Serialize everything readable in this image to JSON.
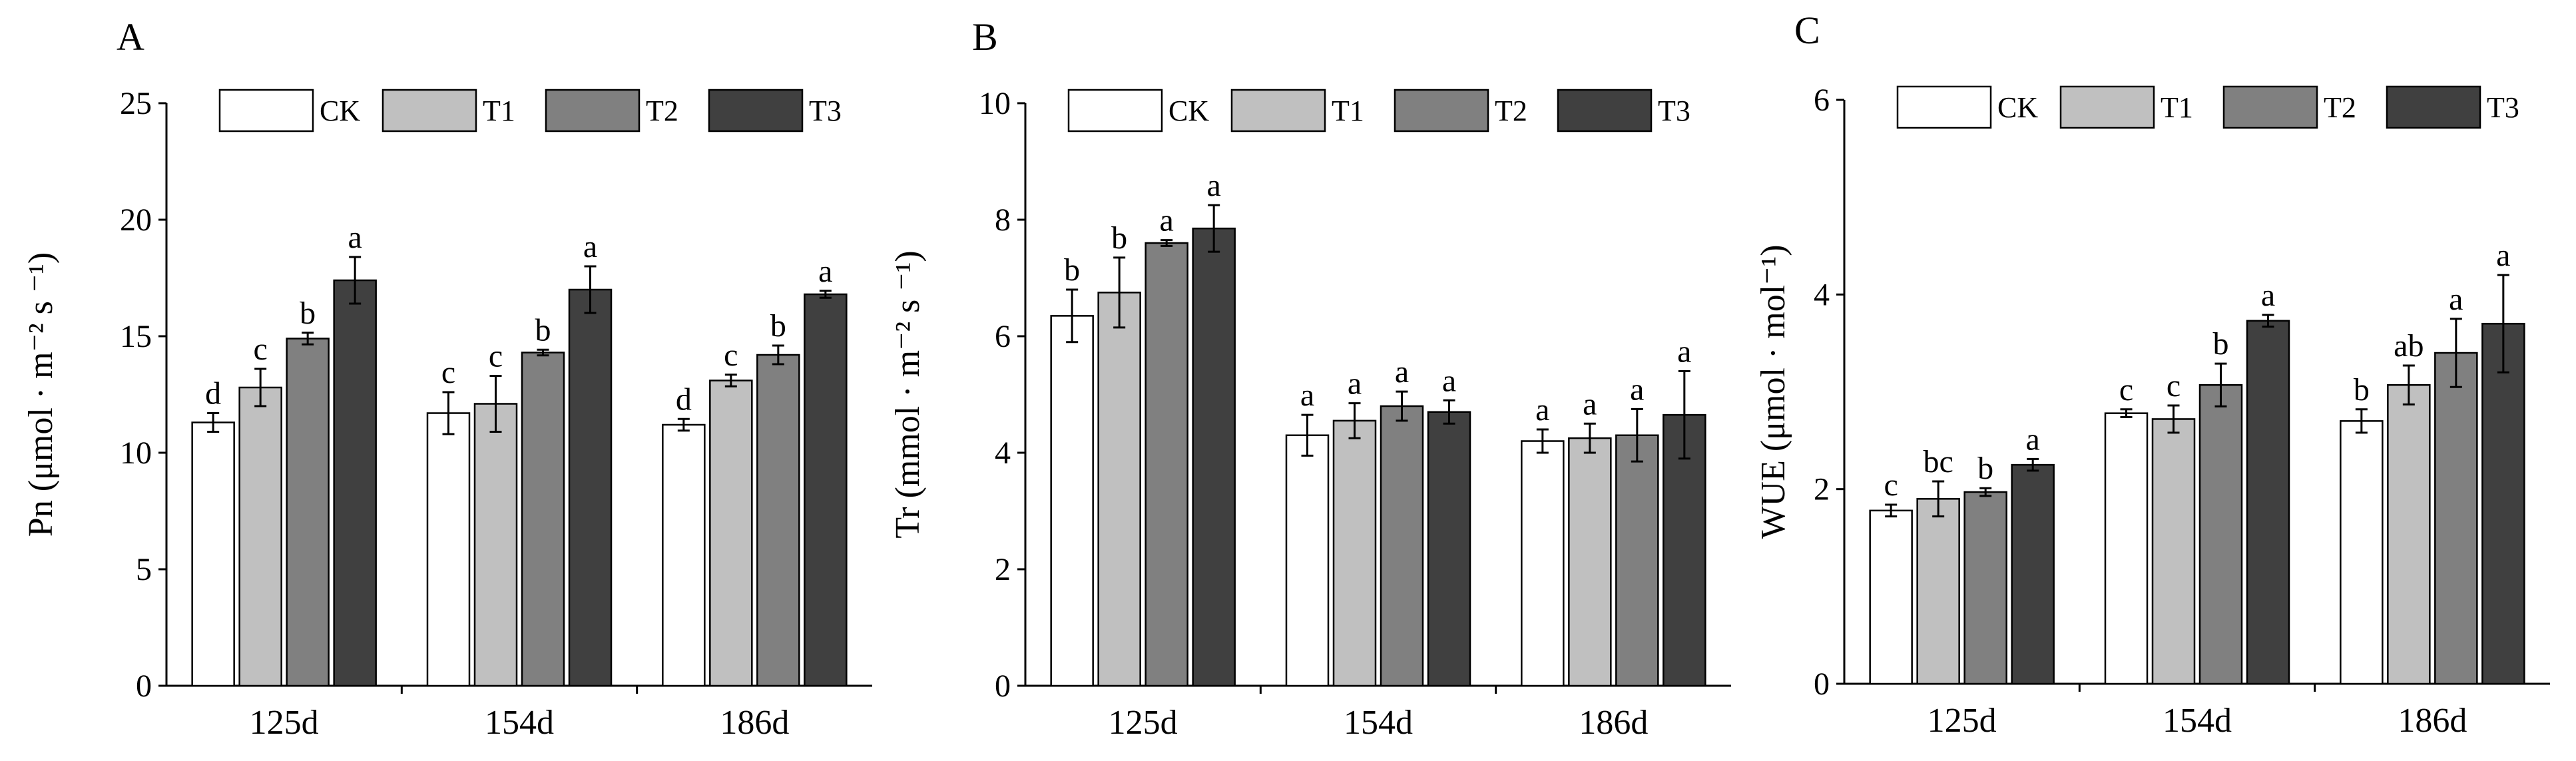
{
  "chart_data": [
    {
      "panel_label": "A",
      "type": "bar",
      "ylabel": "Pn (μmol · m⁻² s ⁻¹)",
      "ylim": [
        0,
        25
      ],
      "yticks": [
        0,
        5,
        10,
        15,
        20,
        25
      ],
      "categories": [
        "125d",
        "154d",
        "186d"
      ],
      "legend_position": "top",
      "series": [
        {
          "name": "CK",
          "color": "#ffffff",
          "values": [
            11.3,
            11.7,
            11.2
          ],
          "errors": [
            0.4,
            0.9,
            0.25
          ],
          "letters": [
            "d",
            "c",
            "d"
          ]
        },
        {
          "name": "T1",
          "color": "#c0c0c0",
          "values": [
            12.8,
            12.1,
            13.1
          ],
          "errors": [
            0.8,
            1.2,
            0.25
          ],
          "letters": [
            "c",
            "c",
            "c"
          ]
        },
        {
          "name": "T2",
          "color": "#808080",
          "values": [
            14.9,
            14.3,
            14.2
          ],
          "errors": [
            0.25,
            0.12,
            0.4
          ],
          "letters": [
            "b",
            "b",
            "b"
          ]
        },
        {
          "name": "T3",
          "color": "#404040",
          "values": [
            17.4,
            17.0,
            16.8
          ],
          "errors": [
            1.0,
            1.0,
            0.15
          ],
          "letters": [
            "a",
            "a",
            "a"
          ]
        }
      ]
    },
    {
      "panel_label": "B",
      "type": "bar",
      "ylabel": "Tr (mmol · m⁻² s ⁻¹)",
      "ylim": [
        0,
        10
      ],
      "yticks": [
        0,
        2,
        4,
        6,
        8,
        10
      ],
      "categories": [
        "125d",
        "154d",
        "186d"
      ],
      "legend_position": "top",
      "series": [
        {
          "name": "CK",
          "color": "#ffffff",
          "values": [
            6.35,
            4.3,
            4.2
          ],
          "errors": [
            0.45,
            0.35,
            0.2
          ],
          "letters": [
            "b",
            "a",
            "a"
          ]
        },
        {
          "name": "T1",
          "color": "#c0c0c0",
          "values": [
            6.75,
            4.55,
            4.25
          ],
          "errors": [
            0.6,
            0.3,
            0.25
          ],
          "letters": [
            "b",
            "a",
            "a"
          ]
        },
        {
          "name": "T2",
          "color": "#808080",
          "values": [
            7.6,
            4.8,
            4.3
          ],
          "errors": [
            0.05,
            0.25,
            0.45
          ],
          "letters": [
            "a",
            "a",
            "a"
          ]
        },
        {
          "name": "T3",
          "color": "#404040",
          "values": [
            7.85,
            4.7,
            4.65
          ],
          "errors": [
            0.4,
            0.2,
            0.75
          ],
          "letters": [
            "a",
            "a",
            "a"
          ]
        }
      ]
    },
    {
      "panel_label": "C",
      "type": "bar",
      "ylabel": "WUE (μmol · mol⁻¹)",
      "ylim": [
        0,
        6
      ],
      "yticks": [
        0,
        2,
        4,
        6
      ],
      "categories": [
        "125d",
        "154d",
        "186d"
      ],
      "legend_position": "top",
      "series": [
        {
          "name": "CK",
          "color": "#ffffff",
          "values": [
            1.78,
            2.78,
            2.7
          ],
          "errors": [
            0.06,
            0.04,
            0.12
          ],
          "letters": [
            "c",
            "c",
            "b"
          ]
        },
        {
          "name": "T1",
          "color": "#c0c0c0",
          "values": [
            1.9,
            2.72,
            3.07
          ],
          "errors": [
            0.18,
            0.14,
            0.2
          ],
          "letters": [
            "bc",
            "c",
            "ab"
          ]
        },
        {
          "name": "T2",
          "color": "#808080",
          "values": [
            1.97,
            3.07,
            3.4
          ],
          "errors": [
            0.04,
            0.22,
            0.35
          ],
          "letters": [
            "b",
            "b",
            "a"
          ]
        },
        {
          "name": "T3",
          "color": "#404040",
          "values": [
            2.25,
            3.73,
            3.7
          ],
          "errors": [
            0.06,
            0.06,
            0.5
          ],
          "letters": [
            "a",
            "a",
            "a"
          ]
        }
      ]
    }
  ]
}
